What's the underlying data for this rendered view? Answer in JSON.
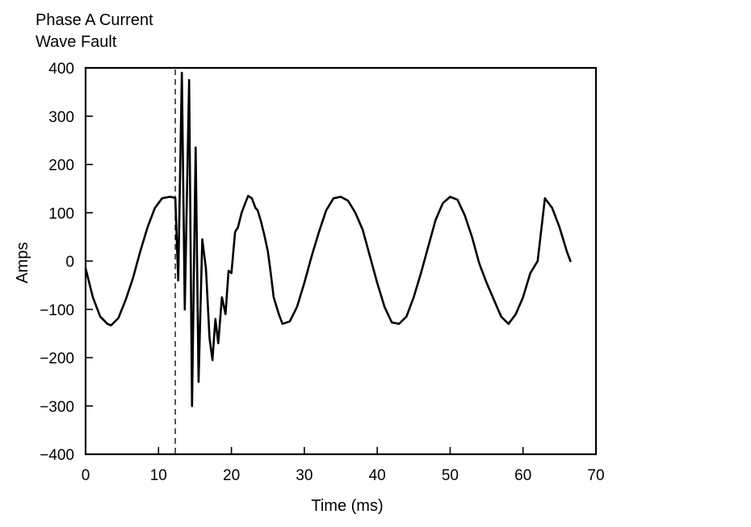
{
  "chart_data": {
    "type": "line",
    "title_lines": [
      "Phase A Current",
      "Wave Fault"
    ],
    "xlabel": "Time (ms)",
    "ylabel": "Amps",
    "xlim": [
      0,
      70
    ],
    "ylim": [
      -400,
      400
    ],
    "x_ticks": [
      0,
      10,
      20,
      30,
      40,
      50,
      60,
      70
    ],
    "x_tick_labels": [
      "0",
      "10",
      "20",
      "30",
      "40",
      "50",
      "60",
      "70"
    ],
    "y_ticks": [
      400,
      300,
      200,
      100,
      0,
      -100,
      -200,
      -300,
      -400
    ],
    "y_tick_labels": [
      "400",
      "300",
      "200",
      "100",
      "0",
      "−100",
      "−200",
      "−300",
      "−400"
    ],
    "grid": false,
    "legend": "none",
    "fault_marker_x": 12.3,
    "series": [
      {
        "color": "#000000",
        "x": [
          0,
          1,
          2,
          3,
          3.5,
          4.5,
          5.5,
          6.5,
          7.5,
          8.5,
          9.5,
          10.5,
          11.5,
          12.0,
          12.3,
          12.7,
          13.2,
          13.6,
          14.2,
          14.6,
          15.1,
          15.5,
          16.0,
          16.5,
          17.0,
          17.4,
          17.8,
          18.2,
          18.7,
          19.2,
          19.6,
          20.0,
          20.5,
          20.9,
          21.4,
          21.9,
          22.3,
          22.8,
          23.3,
          23.6,
          24.0,
          24.5,
          25.0,
          25.4,
          25.8,
          26.5,
          27.0,
          28.0,
          29.0,
          30.0,
          31.0,
          32.0,
          33.0,
          34.0,
          35.0,
          36.0,
          37.0,
          38.0,
          39.0,
          40.0,
          41.0,
          42.0,
          43.0,
          44.0,
          45.0,
          46.0,
          47.0,
          48.0,
          49.0,
          50.0,
          51.0,
          52.0,
          53.0,
          54.0,
          55.0,
          56.0,
          57.0,
          58.0,
          59.0,
          60.0,
          61.0,
          62.0,
          63.0,
          64.0,
          65.0,
          66.0,
          66.5
        ],
        "y": [
          -15,
          -75,
          -115,
          -130,
          -133,
          -118,
          -80,
          -35,
          20,
          70,
          110,
          130,
          133,
          132,
          130,
          -40,
          390,
          -100,
          375,
          -300,
          235,
          -250,
          45,
          -15,
          -160,
          -205,
          -120,
          -170,
          -75,
          -110,
          -20,
          -25,
          60,
          70,
          100,
          120,
          135,
          130,
          110,
          105,
          85,
          55,
          20,
          -25,
          -75,
          -110,
          -130,
          -125,
          -95,
          -45,
          10,
          60,
          105,
          130,
          133,
          125,
          100,
          65,
          10,
          -45,
          -95,
          -127,
          -130,
          -115,
          -75,
          -25,
          30,
          85,
          120,
          133,
          127,
          95,
          50,
          -5,
          -45,
          -80,
          -115,
          -130,
          -110,
          -75,
          -25,
          0,
          130,
          110,
          70,
          20,
          0
        ]
      }
    ]
  }
}
